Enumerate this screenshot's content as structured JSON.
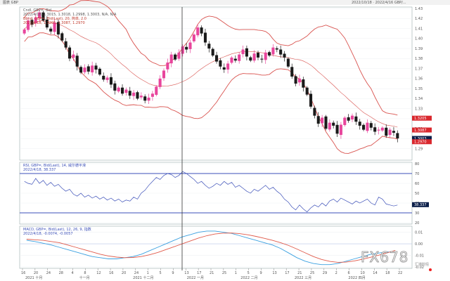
{
  "window": {
    "title": "图表 GBP",
    "title_right": "2022/10/18 · 2022/4/16 GBP/..."
  },
  "main_legend": {
    "line1": "Cndl, GBP=, Bid",
    "line2": "2022/4/18, 1.3015, 1.3018, 1.2998, 1.3003, N/A, N/A",
    "line3": "Bbnd, GBP=, Bid(Last), 20, 简单, 2.0",
    "line4": "2022/4/18, 1.3205, 1.3087, 1.2970"
  },
  "rsi_legend": {
    "line1": "RSI, GBP=, Bid(Last), 14, 威尔德平滑",
    "line2": "2022/4/18, 38.337"
  },
  "macd_legend": {
    "line1": "MACD, GBP=, Bid(Last), 12, 26, 9, 指数",
    "line2": "2022/4/18, -0.0074, -0.0057"
  },
  "watermark": {
    "text": "FX678",
    "sub": "汇通财经"
  },
  "colors": {
    "up": "#e8459c",
    "down": "#1a1a1a",
    "band": "#d9534f",
    "rsi": "#3b4fb8",
    "macd": "#3aa0e0",
    "signal": "#e05a4a",
    "price_tag_red": "#d9282e",
    "price_tag_dark": "#0b1f4a"
  },
  "chart_data": [
    {
      "type": "candlestick",
      "title": "GBP=",
      "ylim": [
        1.28,
        1.43
      ],
      "price_axis_ticks": [
        "1.43",
        "1.42",
        "1.41",
        "1.40",
        "1.39",
        "1.38",
        "1.37",
        "1.36",
        "1.35",
        "1.34",
        "1.33",
        "1.32",
        "1.31",
        "1.30",
        "1.29"
      ],
      "price_tags": [
        {
          "label": "1.3205",
          "color": "#d9282e",
          "value": 1.3205
        },
        {
          "label": "1.3087",
          "color": "#d9282e",
          "value": 1.3087
        },
        {
          "label": "1.3003",
          "color": "#0b1f4a",
          "value": 1.3003
        },
        {
          "label": "1.2970",
          "color": "#d9282e",
          "value": 1.297
        }
      ],
      "closes": [
        1.409,
        1.418,
        1.414,
        1.421,
        1.426,
        1.418,
        1.411,
        1.407,
        1.416,
        1.404,
        1.398,
        1.391,
        1.38,
        1.384,
        1.372,
        1.366,
        1.371,
        1.367,
        1.373,
        1.369,
        1.364,
        1.359,
        1.361,
        1.354,
        1.348,
        1.351,
        1.345,
        1.349,
        1.343,
        1.346,
        1.34,
        1.343,
        1.338,
        1.341,
        1.345,
        1.352,
        1.36,
        1.368,
        1.376,
        1.384,
        1.379,
        1.386,
        1.392,
        1.389,
        1.396,
        1.404,
        1.411,
        1.405,
        1.396,
        1.39,
        1.383,
        1.377,
        1.372,
        1.369,
        1.375,
        1.381,
        1.378,
        1.384,
        1.389,
        1.382,
        1.378,
        1.385,
        1.381,
        1.379,
        1.386,
        1.383,
        1.391,
        1.389,
        1.384,
        1.381,
        1.372,
        1.362,
        1.355,
        1.36,
        1.351,
        1.344,
        1.332,
        1.323,
        1.315,
        1.321,
        1.31,
        1.316,
        1.313,
        1.305,
        1.314,
        1.321,
        1.318,
        1.323,
        1.317,
        1.313,
        1.309,
        1.316,
        1.311,
        1.307,
        1.309,
        1.311,
        1.303,
        1.309,
        1.306,
        1.3003
      ],
      "series": [
        {
          "name": "Bbnd upper"
        },
        {
          "name": "Bbnd mid"
        },
        {
          "name": "Bbnd lower"
        }
      ]
    },
    {
      "type": "line",
      "title": "RSI",
      "ylim": [
        20,
        80
      ],
      "y_ticks": [
        "80",
        "70",
        "60",
        "50",
        "40",
        "30",
        "20"
      ],
      "reference_lines": [
        70,
        30
      ],
      "last_tag": "38.337",
      "series": [
        {
          "name": "RSI",
          "values": [
            62,
            60,
            59,
            65,
            60,
            63,
            58,
            61,
            57,
            59,
            55,
            52,
            54,
            49,
            47,
            50,
            46,
            48,
            45,
            47,
            44,
            46,
            43,
            45,
            42,
            44,
            41,
            43,
            42,
            46,
            44,
            50,
            53,
            58,
            62,
            66,
            64,
            68,
            70,
            69,
            66,
            68,
            72,
            70,
            67,
            64,
            60,
            62,
            58,
            55,
            57,
            60,
            58,
            62,
            59,
            61,
            56,
            58,
            55,
            52,
            50,
            54,
            52,
            55,
            58,
            54,
            56,
            52,
            49,
            44,
            41,
            36,
            33,
            38,
            34,
            31,
            35,
            38,
            36,
            40,
            37,
            42,
            44,
            41,
            45,
            43,
            41,
            39,
            42,
            40,
            42,
            44,
            40,
            38,
            46,
            44,
            39,
            38,
            37,
            38
          ]
        }
      ]
    },
    {
      "type": "line",
      "title": "MACD",
      "ylim": [
        -0.02,
        0.014
      ],
      "y_ticks": [
        "0.01",
        "0.00",
        "-0.01",
        "-0.02"
      ],
      "series": [
        {
          "name": "MACD",
          "values": [
            0.003,
            0.002,
            0.0005,
            -0.001,
            -0.003,
            -0.005,
            -0.007,
            -0.009,
            -0.011,
            -0.012,
            -0.013,
            -0.013,
            -0.012,
            -0.011,
            -0.009,
            -0.006,
            -0.003,
            0,
            0.003,
            0.006,
            0.008,
            0.01,
            0.011,
            0.011,
            0.01,
            0.009,
            0.007,
            0.005,
            0.003,
            0.001,
            -0.001,
            -0.004,
            -0.008,
            -0.012,
            -0.015,
            -0.017,
            -0.018,
            -0.018,
            -0.017,
            -0.015,
            -0.013,
            -0.011,
            -0.009,
            -0.008,
            -0.007,
            -0.0074
          ]
        },
        {
          "name": "Signal",
          "values": [
            0.004,
            0.0035,
            0.003,
            0.002,
            0.001,
            -0.001,
            -0.003,
            -0.005,
            -0.007,
            -0.009,
            -0.0105,
            -0.0115,
            -0.012,
            -0.0118,
            -0.011,
            -0.0095,
            -0.0075,
            -0.005,
            -0.0025,
            0,
            0.0025,
            0.005,
            0.007,
            0.0085,
            0.0092,
            0.0093,
            0.0088,
            0.0078,
            0.0064,
            0.0048,
            0.003,
            0.001,
            -0.0015,
            -0.0045,
            -0.0078,
            -0.011,
            -0.0135,
            -0.0152,
            -0.016,
            -0.0158,
            -0.0148,
            -0.0133,
            -0.0116,
            -0.0098,
            -0.0078,
            -0.0057
          ]
        }
      ]
    }
  ],
  "x_axis": {
    "day_ticks": [
      "16",
      "20",
      "24",
      "28",
      "4",
      "8",
      "12",
      "16",
      "20",
      "24",
      "1",
      "5",
      "9",
      "13",
      "17",
      "21",
      "25",
      "1",
      "5",
      "9",
      "13",
      "17",
      "21",
      "25",
      "29",
      "2",
      "6",
      "10",
      "14",
      "18",
      "22"
    ],
    "month_labels": [
      "2021 十月",
      "十一月",
      "2021 十二月",
      "2022 一月",
      "2022 二月",
      "2022 三月",
      "2022 四月"
    ]
  }
}
